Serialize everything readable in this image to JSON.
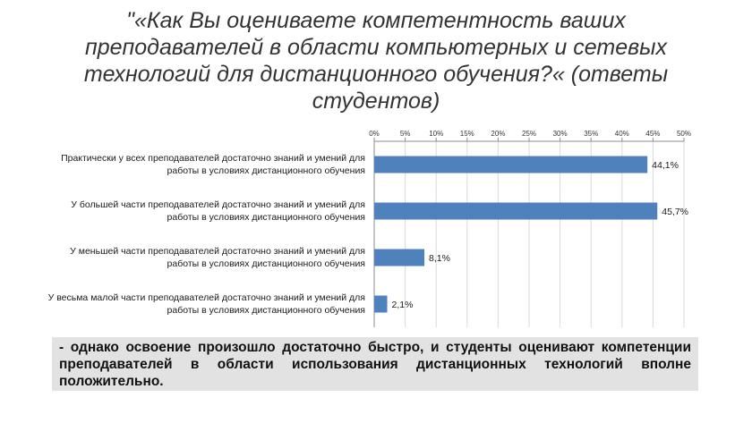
{
  "slide": {
    "title": "\"«Как Вы оцениваете компетентность ваших преподавателей в области компьютерных и сетевых технологий для дистанционного обучения?« (ответы студентов)",
    "note": "- однако освоение произошло достаточно быстро, и студенты оценивают компетенции преподавателей в области использования дистанционных технологий вполне положительно."
  },
  "chart_data": {
    "type": "bar",
    "orientation": "horizontal",
    "categories": [
      "Практически у всех преподавателей достаточно знаний и умений для работы в условиях дистанционного обучения",
      "У большей части преподавателей достаточно знаний и умений для работы в условиях дистанционного обучения",
      "У меньшей части преподавателей достаточно знаний и умений для работы в условиях дистанционного обучения",
      "У весьма малой части преподавателей достаточно знаний и умений для работы в условиях дистанционного обучения"
    ],
    "values": [
      44.1,
      45.7,
      8.1,
      2.1
    ],
    "data_labels": [
      "44,1%",
      "45,7%",
      "8,1%",
      "2,1%"
    ],
    "xlim": [
      0,
      50
    ],
    "x_ticks": [
      "0%",
      "5%",
      "10%",
      "15%",
      "20%",
      "25%",
      "30%",
      "35%",
      "40%",
      "45%",
      "50%"
    ],
    "x_axis_position": "top",
    "grid": true,
    "bar_color": "#4f81bd",
    "title": "",
    "xlabel": "",
    "ylabel": ""
  }
}
